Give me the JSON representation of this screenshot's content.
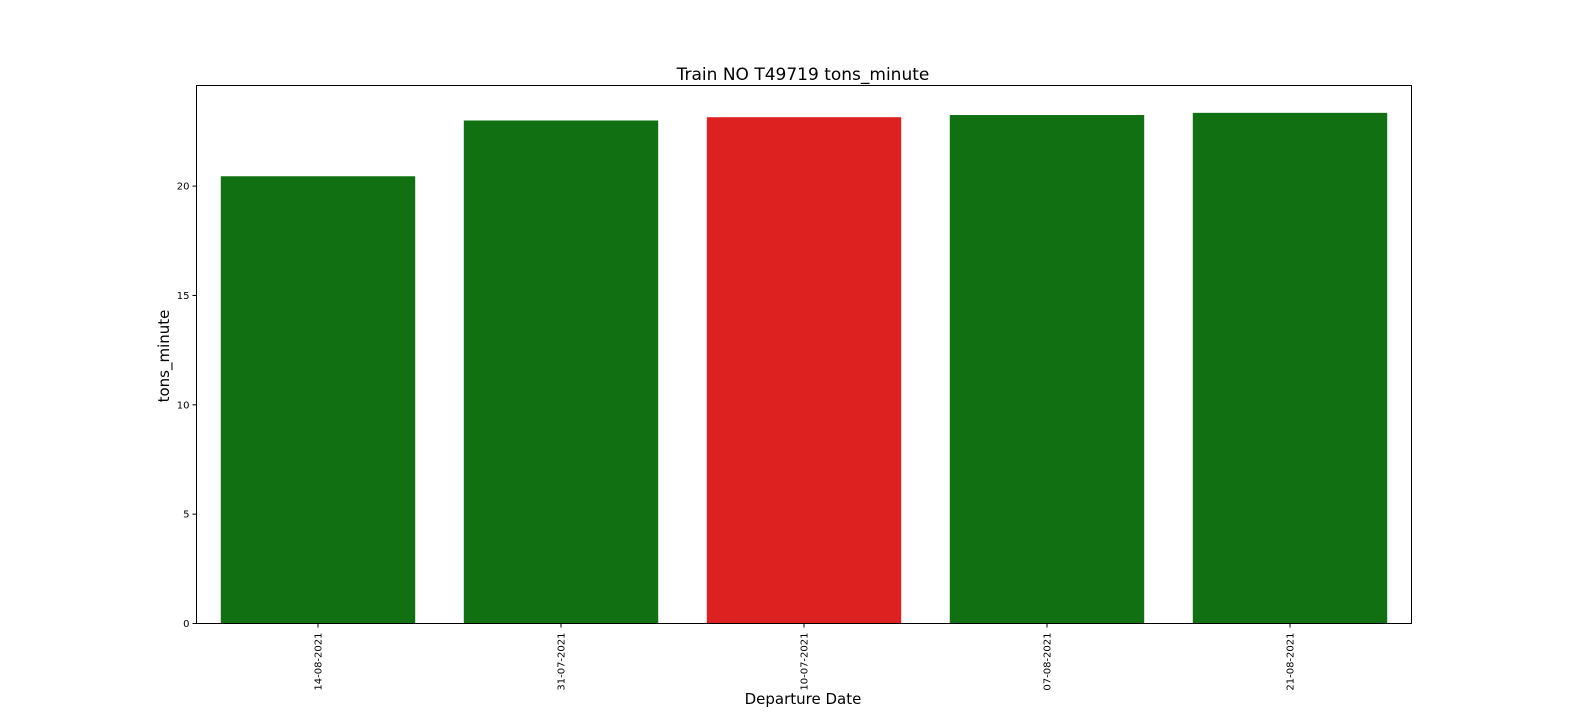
{
  "chart_data": {
    "type": "bar",
    "title": "Train NO T49719 tons_minute",
    "xlabel": "Departure Date",
    "ylabel": "tons_minute",
    "categories": [
      "14-08-2021",
      "31-07-2021",
      "10-07-2021",
      "07-08-2021",
      "21-08-2021"
    ],
    "values": [
      20.45,
      23.0,
      23.15,
      23.25,
      23.35
    ],
    "bar_colors": [
      "#117011",
      "#117011",
      "#dd2020",
      "#117011",
      "#117011"
    ],
    "ylim": [
      0,
      24.6
    ],
    "yticks": [
      0,
      5,
      10,
      15,
      20
    ],
    "grid": false,
    "legend": "none"
  }
}
